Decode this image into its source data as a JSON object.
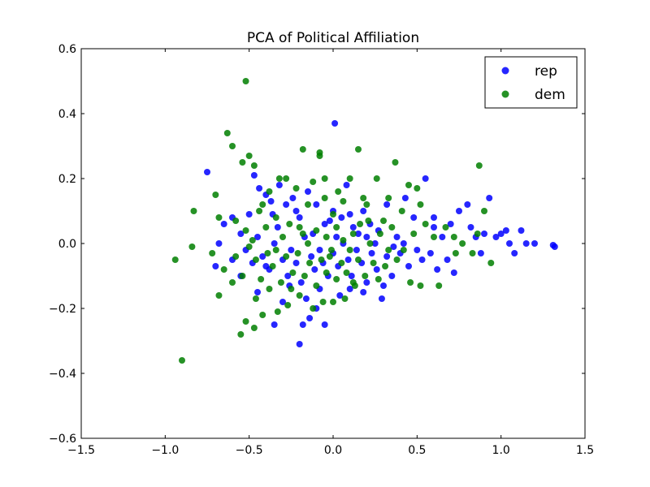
{
  "chart_data": {
    "type": "scatter",
    "title": "PCA of Political Affiliation",
    "xlabel": "",
    "ylabel": "",
    "xlim": [
      -1.5,
      1.5
    ],
    "ylim": [
      -0.6,
      0.6
    ],
    "xticks": [
      -1.5,
      -1.0,
      -0.5,
      0.0,
      0.5,
      1.0,
      1.5
    ],
    "xtick_labels": [
      "−1.5",
      "−1.0",
      "−0.5",
      "0.0",
      "0.5",
      "1.0",
      "1.5"
    ],
    "yticks": [
      -0.6,
      -0.4,
      -0.2,
      0.0,
      0.2,
      0.4,
      0.6
    ],
    "ytick_labels": [
      "−0.6",
      "−0.4",
      "−0.2",
      "0.0",
      "0.2",
      "0.4",
      "0.6"
    ],
    "grid": false,
    "legend": "top-right",
    "series": [
      {
        "name": "rep",
        "color": "#0000ff",
        "points": [
          [
            0.01,
            0.37
          ],
          [
            -0.75,
            0.22
          ],
          [
            -0.47,
            0.21
          ],
          [
            -0.44,
            0.17
          ],
          [
            -0.4,
            0.15
          ],
          [
            -0.37,
            0.13
          ],
          [
            -0.32,
            0.18
          ],
          [
            -0.28,
            0.12
          ],
          [
            -0.24,
            0.14
          ],
          [
            -0.2,
            0.08
          ],
          [
            -0.15,
            0.16
          ],
          [
            -0.1,
            0.12
          ],
          [
            -0.05,
            0.06
          ],
          [
            0.0,
            0.1
          ],
          [
            0.05,
            0.08
          ],
          [
            0.08,
            0.18
          ],
          [
            0.12,
            0.05
          ],
          [
            0.18,
            0.1
          ],
          [
            0.22,
            0.06
          ],
          [
            0.27,
            0.04
          ],
          [
            0.32,
            0.12
          ],
          [
            0.38,
            0.02
          ],
          [
            0.43,
            0.14
          ],
          [
            0.48,
            0.08
          ],
          [
            0.55,
            0.2
          ],
          [
            0.6,
            0.05
          ],
          [
            0.65,
            0.02
          ],
          [
            0.7,
            0.06
          ],
          [
            0.75,
            0.1
          ],
          [
            0.8,
            0.12
          ],
          [
            0.82,
            0.05
          ],
          [
            0.85,
            0.02
          ],
          [
            0.88,
            -0.03
          ],
          [
            0.9,
            0.03
          ],
          [
            0.93,
            0.14
          ],
          [
            0.97,
            0.02
          ],
          [
            1.0,
            0.03
          ],
          [
            1.03,
            0.04
          ],
          [
            1.05,
            0.0
          ],
          [
            1.08,
            -0.03
          ],
          [
            1.12,
            0.04
          ],
          [
            1.15,
            0.0
          ],
          [
            1.2,
            0.0
          ],
          [
            1.32,
            -0.01
          ],
          [
            1.31,
            -0.005
          ],
          [
            -0.65,
            0.06
          ],
          [
            -0.6,
            0.08
          ],
          [
            -0.55,
            0.03
          ],
          [
            -0.52,
            -0.02
          ],
          [
            -0.48,
            -0.06
          ],
          [
            -0.45,
            0.02
          ],
          [
            -0.42,
            -0.04
          ],
          [
            -0.38,
            -0.08
          ],
          [
            -0.35,
            0.0
          ],
          [
            -0.3,
            -0.05
          ],
          [
            -0.27,
            -0.1
          ],
          [
            -0.25,
            -0.02
          ],
          [
            -0.22,
            -0.06
          ],
          [
            -0.19,
            -0.12
          ],
          [
            -0.17,
            0.02
          ],
          [
            -0.13,
            -0.04
          ],
          [
            -0.11,
            -0.08
          ],
          [
            -0.08,
            -0.02
          ],
          [
            -0.06,
            -0.06
          ],
          [
            -0.03,
            -0.1
          ],
          [
            0.0,
            -0.03
          ],
          [
            0.03,
            -0.07
          ],
          [
            0.06,
            0.0
          ],
          [
            0.09,
            -0.05
          ],
          [
            0.11,
            -0.1
          ],
          [
            0.14,
            -0.02
          ],
          [
            0.17,
            -0.06
          ],
          [
            0.2,
            -0.12
          ],
          [
            0.23,
            -0.03
          ],
          [
            0.26,
            -0.08
          ],
          [
            0.29,
            -0.17
          ],
          [
            0.32,
            -0.04
          ],
          [
            0.35,
            -0.1
          ],
          [
            0.4,
            -0.03
          ],
          [
            0.45,
            -0.07
          ],
          [
            0.5,
            -0.02
          ],
          [
            0.53,
            -0.05
          ],
          [
            0.58,
            -0.03
          ],
          [
            0.62,
            -0.08
          ],
          [
            0.68,
            -0.05
          ],
          [
            0.72,
            -0.09
          ],
          [
            -0.2,
            -0.31
          ],
          [
            -0.18,
            -0.25
          ],
          [
            -0.14,
            -0.23
          ],
          [
            -0.35,
            -0.25
          ],
          [
            -0.05,
            -0.25
          ],
          [
            -0.1,
            -0.2
          ],
          [
            -0.3,
            -0.18
          ],
          [
            -0.45,
            -0.15
          ],
          [
            -0.55,
            -0.1
          ],
          [
            -0.6,
            -0.05
          ],
          [
            -0.7,
            -0.07
          ],
          [
            -0.68,
            0.0
          ],
          [
            -0.33,
            0.05
          ],
          [
            -0.12,
            0.03
          ],
          [
            0.02,
            0.02
          ],
          [
            0.15,
            0.03
          ],
          [
            0.25,
            0.0
          ],
          [
            0.36,
            -0.01
          ],
          [
            -0.4,
            -0.07
          ],
          [
            -0.08,
            -0.14
          ],
          [
            0.04,
            -0.16
          ],
          [
            0.1,
            -0.14
          ],
          [
            0.18,
            -0.15
          ],
          [
            -0.16,
            -0.17
          ],
          [
            -0.26,
            -0.13
          ],
          [
            0.3,
            -0.13
          ],
          [
            0.42,
            0.0
          ],
          [
            0.6,
            0.08
          ],
          [
            -0.5,
            0.09
          ],
          [
            -0.36,
            0.09
          ],
          [
            -0.22,
            0.1
          ],
          [
            -0.02,
            0.07
          ],
          [
            0.1,
            0.09
          ],
          [
            0.2,
            0.02
          ]
        ]
      },
      {
        "name": "dem",
        "color": "#007f00",
        "points": [
          [
            -0.52,
            0.5
          ],
          [
            -0.63,
            0.34
          ],
          [
            -0.6,
            0.3
          ],
          [
            -0.54,
            0.25
          ],
          [
            -0.5,
            0.27
          ],
          [
            -0.47,
            0.24
          ],
          [
            -0.32,
            0.2
          ],
          [
            -0.18,
            0.29
          ],
          [
            -0.08,
            0.28
          ],
          [
            -0.08,
            0.27
          ],
          [
            0.15,
            0.29
          ],
          [
            0.37,
            0.25
          ],
          [
            0.45,
            0.18
          ],
          [
            0.5,
            0.17
          ],
          [
            0.87,
            0.24
          ],
          [
            -0.7,
            0.15
          ],
          [
            -0.42,
            0.12
          ],
          [
            -0.38,
            0.16
          ],
          [
            -0.28,
            0.2
          ],
          [
            -0.22,
            0.17
          ],
          [
            -0.12,
            0.19
          ],
          [
            -0.05,
            0.2
          ],
          [
            0.03,
            0.16
          ],
          [
            0.1,
            0.2
          ],
          [
            0.2,
            0.12
          ],
          [
            0.26,
            0.2
          ],
          [
            0.33,
            0.14
          ],
          [
            0.41,
            0.1
          ],
          [
            0.52,
            0.12
          ],
          [
            -0.83,
            0.1
          ],
          [
            -0.68,
            0.08
          ],
          [
            -0.58,
            0.07
          ],
          [
            -0.52,
            0.04
          ],
          [
            -0.44,
            0.1
          ],
          [
            -0.4,
            0.05
          ],
          [
            -0.34,
            0.08
          ],
          [
            -0.3,
            0.02
          ],
          [
            -0.26,
            0.06
          ],
          [
            -0.2,
            0.05
          ],
          [
            -0.15,
            0.0
          ],
          [
            -0.1,
            0.04
          ],
          [
            -0.04,
            0.02
          ],
          [
            0.02,
            0.05
          ],
          [
            0.06,
            0.01
          ],
          [
            0.12,
            0.03
          ],
          [
            0.16,
            0.06
          ],
          [
            0.22,
            0.0
          ],
          [
            0.28,
            0.03
          ],
          [
            0.35,
            0.05
          ],
          [
            0.42,
            -0.02
          ],
          [
            0.48,
            0.03
          ],
          [
            0.55,
            0.06
          ],
          [
            0.6,
            0.02
          ],
          [
            0.67,
            0.05
          ],
          [
            0.72,
            0.02
          ],
          [
            0.77,
            0.0
          ],
          [
            0.86,
            0.03
          ],
          [
            0.9,
            0.1
          ],
          [
            0.94,
            -0.06
          ],
          [
            -0.94,
            -0.05
          ],
          [
            -0.84,
            -0.01
          ],
          [
            -0.72,
            -0.03
          ],
          [
            -0.65,
            -0.08
          ],
          [
            -0.58,
            -0.04
          ],
          [
            -0.54,
            -0.1
          ],
          [
            -0.5,
            -0.01
          ],
          [
            -0.46,
            -0.05
          ],
          [
            -0.43,
            -0.11
          ],
          [
            -0.39,
            -0.03
          ],
          [
            -0.36,
            -0.07
          ],
          [
            -0.31,
            -0.12
          ],
          [
            -0.28,
            -0.04
          ],
          [
            -0.24,
            -0.09
          ],
          [
            -0.21,
            -0.03
          ],
          [
            -0.17,
            -0.1
          ],
          [
            -0.14,
            -0.06
          ],
          [
            -0.1,
            -0.13
          ],
          [
            -0.07,
            -0.05
          ],
          [
            -0.04,
            -0.09
          ],
          [
            -0.01,
            -0.02
          ],
          [
            0.02,
            -0.11
          ],
          [
            0.05,
            -0.06
          ],
          [
            0.08,
            -0.09
          ],
          [
            0.12,
            -0.12
          ],
          [
            0.15,
            -0.05
          ],
          [
            0.19,
            -0.1
          ],
          [
            0.24,
            -0.06
          ],
          [
            0.27,
            -0.11
          ],
          [
            0.31,
            -0.07
          ],
          [
            0.38,
            -0.05
          ],
          [
            0.46,
            -0.12
          ],
          [
            0.52,
            -0.13
          ],
          [
            0.63,
            -0.13
          ],
          [
            0.73,
            -0.03
          ],
          [
            0.83,
            -0.03
          ],
          [
            -0.9,
            -0.36
          ],
          [
            -0.55,
            -0.28
          ],
          [
            -0.52,
            -0.24
          ],
          [
            -0.47,
            -0.26
          ],
          [
            -0.42,
            -0.22
          ],
          [
            -0.33,
            -0.21
          ],
          [
            -0.27,
            -0.19
          ],
          [
            -0.2,
            -0.16
          ],
          [
            -0.12,
            -0.2
          ],
          [
            -0.06,
            -0.18
          ],
          [
            0.0,
            -0.18
          ],
          [
            0.07,
            -0.17
          ],
          [
            0.13,
            -0.13
          ],
          [
            -0.68,
            -0.16
          ],
          [
            -0.6,
            -0.12
          ],
          [
            -0.46,
            -0.17
          ],
          [
            -0.38,
            -0.14
          ],
          [
            -0.25,
            -0.14
          ],
          [
            0.0,
            0.09
          ],
          [
            -0.15,
            0.12
          ],
          [
            -0.05,
            0.14
          ],
          [
            0.06,
            0.13
          ],
          [
            0.18,
            0.14
          ],
          [
            0.3,
            0.07
          ],
          [
            -0.48,
            0.01
          ],
          [
            -0.34,
            -0.02
          ],
          [
            -0.18,
            0.03
          ],
          [
            -0.02,
            -0.04
          ],
          [
            0.1,
            -0.02
          ],
          [
            0.21,
            0.07
          ],
          [
            0.33,
            -0.02
          ]
        ]
      }
    ]
  }
}
